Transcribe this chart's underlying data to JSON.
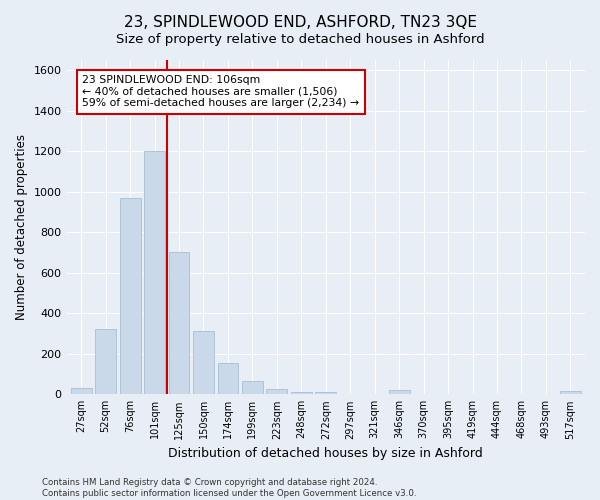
{
  "title": "23, SPINDLEWOOD END, ASHFORD, TN23 3QE",
  "subtitle": "Size of property relative to detached houses in Ashford",
  "xlabel": "Distribution of detached houses by size in Ashford",
  "ylabel": "Number of detached properties",
  "bar_labels": [
    "27sqm",
    "52sqm",
    "76sqm",
    "101sqm",
    "125sqm",
    "150sqm",
    "174sqm",
    "199sqm",
    "223sqm",
    "248sqm",
    "272sqm",
    "297sqm",
    "321sqm",
    "346sqm",
    "370sqm",
    "395sqm",
    "419sqm",
    "444sqm",
    "468sqm",
    "493sqm",
    "517sqm"
  ],
  "bar_values": [
    30,
    320,
    970,
    1200,
    700,
    310,
    155,
    65,
    25,
    12,
    12,
    0,
    0,
    20,
    0,
    0,
    0,
    0,
    0,
    0,
    15
  ],
  "bar_color": "#c9d9ea",
  "bar_edgecolor": "#a8bfd0",
  "vline_x_index": 3.5,
  "vline_color": "#cc0000",
  "ylim": [
    0,
    1650
  ],
  "yticks": [
    0,
    200,
    400,
    600,
    800,
    1000,
    1200,
    1400,
    1600
  ],
  "annotation_text": "23 SPINDLEWOOD END: 106sqm\n← 40% of detached houses are smaller (1,506)\n59% of semi-detached houses are larger (2,234) →",
  "annotation_box_color": "#ffffff",
  "annotation_box_edgecolor": "#cc0000",
  "footer_line1": "Contains HM Land Registry data © Crown copyright and database right 2024.",
  "footer_line2": "Contains public sector information licensed under the Open Government Licence v3.0.",
  "background_color": "#e8eef5",
  "plot_bg_color": "#e8eef5",
  "grid_color": "#ffffff",
  "title_fontsize": 11,
  "subtitle_fontsize": 10
}
